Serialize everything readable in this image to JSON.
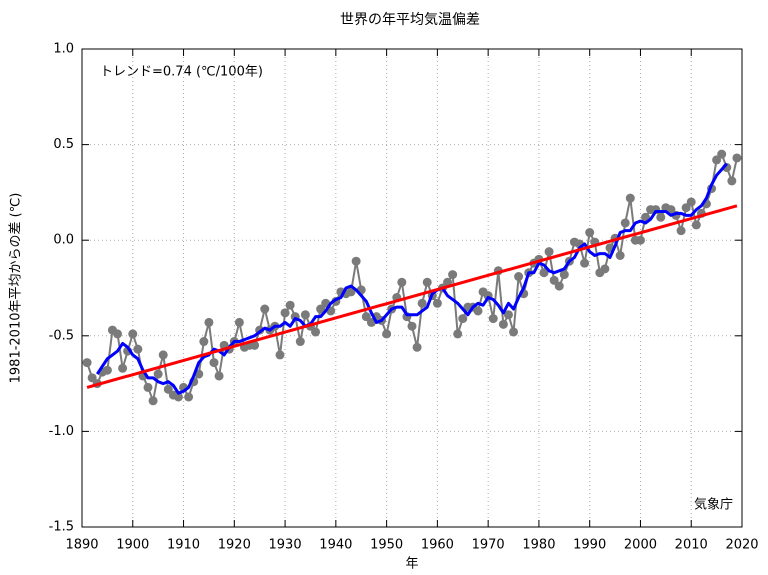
{
  "chart_data": {
    "type": "line",
    "title": "世界の年平均気温偏差",
    "annotation": "トレンド=0.74 (℃/100年)",
    "credit": "気象庁",
    "xlabel": "年",
    "ylabel": "1981-2010年平均からの差 (℃)",
    "xlim": [
      1890,
      2020
    ],
    "xticks": [
      1890,
      1900,
      1910,
      1920,
      1930,
      1940,
      1950,
      1960,
      1970,
      1980,
      1990,
      2000,
      2010,
      2020
    ],
    "ylim": [
      -1.5,
      1.0
    ],
    "yticks": [
      {
        "value": -1.5,
        "label": "-1.5"
      },
      {
        "value": -1.0,
        "label": "-1.0"
      },
      -0.5,
      {
        "value": 0.0,
        "label": "0.0"
      },
      0.5,
      {
        "value": 1.0,
        "label": "1.0"
      }
    ],
    "grid": true,
    "series": [
      {
        "color": "#7a7a7a",
        "markers": true,
        "width": 2,
        "x": [
          1891,
          1892,
          1893,
          1894,
          1895,
          1896,
          1897,
          1898,
          1899,
          1900,
          1901,
          1902,
          1903,
          1904,
          1905,
          1906,
          1907,
          1908,
          1909,
          1910,
          1911,
          1912,
          1913,
          1914,
          1915,
          1916,
          1917,
          1918,
          1919,
          1920,
          1921,
          1922,
          1923,
          1924,
          1925,
          1926,
          1927,
          1928,
          1929,
          1930,
          1931,
          1932,
          1933,
          1934,
          1935,
          1936,
          1937,
          1938,
          1939,
          1940,
          1941,
          1942,
          1943,
          1944,
          1945,
          1946,
          1947,
          1948,
          1949,
          1950,
          1951,
          1952,
          1953,
          1954,
          1955,
          1956,
          1957,
          1958,
          1959,
          1960,
          1961,
          1962,
          1963,
          1964,
          1965,
          1966,
          1967,
          1968,
          1969,
          1970,
          1971,
          1972,
          1973,
          1974,
          1975,
          1976,
          1977,
          1978,
          1979,
          1980,
          1981,
          1982,
          1983,
          1984,
          1985,
          1986,
          1987,
          1988,
          1989,
          1990,
          1991,
          1992,
          1993,
          1994,
          1995,
          1996,
          1997,
          1998,
          1999,
          2000,
          2001,
          2002,
          2003,
          2004,
          2005,
          2006,
          2007,
          2008,
          2009,
          2010,
          2011,
          2012,
          2013,
          2014,
          2015,
          2016,
          2017,
          2018,
          2019
        ],
        "values": [
          -0.64,
          -0.72,
          -0.75,
          -0.69,
          -0.68,
          -0.47,
          -0.49,
          -0.67,
          -0.58,
          -0.49,
          -0.57,
          -0.71,
          -0.77,
          -0.84,
          -0.7,
          -0.6,
          -0.78,
          -0.81,
          -0.82,
          -0.77,
          -0.82,
          -0.74,
          -0.7,
          -0.53,
          -0.43,
          -0.64,
          -0.71,
          -0.55,
          -0.57,
          -0.53,
          -0.43,
          -0.56,
          -0.55,
          -0.55,
          -0.47,
          -0.36,
          -0.47,
          -0.45,
          -0.6,
          -0.38,
          -0.34,
          -0.4,
          -0.53,
          -0.39,
          -0.45,
          -0.48,
          -0.36,
          -0.33,
          -0.37,
          -0.32,
          -0.27,
          -0.28,
          -0.27,
          -0.11,
          -0.26,
          -0.4,
          -0.43,
          -0.4,
          -0.42,
          -0.49,
          -0.36,
          -0.3,
          -0.22,
          -0.4,
          -0.45,
          -0.56,
          -0.33,
          -0.22,
          -0.29,
          -0.33,
          -0.25,
          -0.22,
          -0.18,
          -0.49,
          -0.41,
          -0.35,
          -0.35,
          -0.37,
          -0.27,
          -0.29,
          -0.41,
          -0.16,
          -0.44,
          -0.39,
          -0.48,
          -0.19,
          -0.28,
          -0.17,
          -0.12,
          -0.1,
          -0.17,
          -0.06,
          -0.21,
          -0.24,
          -0.18,
          -0.11,
          -0.01,
          -0.02,
          -0.12,
          0.04,
          -0.01,
          -0.17,
          -0.15,
          -0.04,
          0.01,
          -0.08,
          0.09,
          0.22,
          0.0,
          0.0,
          0.12,
          0.16,
          0.16,
          0.12,
          0.17,
          0.16,
          0.13,
          0.05,
          0.17,
          0.2,
          0.08,
          0.14,
          0.19,
          0.27,
          0.42,
          0.45,
          0.38,
          0.31,
          0.43
        ]
      },
      {
        "color": "#0000ff",
        "markers": false,
        "width": 3,
        "x": [
          1893,
          1894,
          1895,
          1896,
          1897,
          1898,
          1899,
          1900,
          1901,
          1902,
          1903,
          1904,
          1905,
          1906,
          1907,
          1908,
          1909,
          1910,
          1911,
          1912,
          1913,
          1914,
          1915,
          1916,
          1917,
          1918,
          1919,
          1920,
          1921,
          1922,
          1923,
          1924,
          1925,
          1926,
          1927,
          1928,
          1929,
          1930,
          1931,
          1932,
          1933,
          1934,
          1935,
          1936,
          1937,
          1938,
          1939,
          1940,
          1941,
          1942,
          1943,
          1944,
          1945,
          1946,
          1947,
          1948,
          1949,
          1950,
          1951,
          1952,
          1953,
          1954,
          1955,
          1956,
          1957,
          1958,
          1959,
          1960,
          1961,
          1962,
          1963,
          1964,
          1965,
          1966,
          1967,
          1968,
          1969,
          1970,
          1971,
          1972,
          1973,
          1974,
          1975,
          1976,
          1977,
          1978,
          1979,
          1980,
          1981,
          1982,
          1983,
          1984,
          1985,
          1986,
          1987,
          1988,
          1989,
          1990,
          1991,
          1992,
          1993,
          1994,
          1995,
          1996,
          1997,
          1998,
          1999,
          2000,
          2001,
          2002,
          2003,
          2004,
          2005,
          2006,
          2007,
          2008,
          2009,
          2010,
          2011,
          2012,
          2013,
          2014,
          2015,
          2016,
          2017
        ],
        "values": [
          -0.7,
          -0.66,
          -0.62,
          -0.6,
          -0.58,
          -0.54,
          -0.56,
          -0.6,
          -0.62,
          -0.68,
          -0.72,
          -0.72,
          -0.74,
          -0.75,
          -0.74,
          -0.76,
          -0.8,
          -0.79,
          -0.77,
          -0.71,
          -0.64,
          -0.61,
          -0.6,
          -0.57,
          -0.58,
          -0.6,
          -0.56,
          -0.53,
          -0.53,
          -0.52,
          -0.51,
          -0.5,
          -0.48,
          -0.46,
          -0.47,
          -0.45,
          -0.45,
          -0.43,
          -0.45,
          -0.41,
          -0.42,
          -0.45,
          -0.44,
          -0.4,
          -0.4,
          -0.37,
          -0.33,
          -0.31,
          -0.3,
          -0.25,
          -0.24,
          -0.26,
          -0.29,
          -0.32,
          -0.38,
          -0.43,
          -0.42,
          -0.39,
          -0.36,
          -0.35,
          -0.35,
          -0.39,
          -0.39,
          -0.39,
          -0.37,
          -0.35,
          -0.28,
          -0.26,
          -0.25,
          -0.29,
          -0.31,
          -0.33,
          -0.36,
          -0.39,
          -0.35,
          -0.33,
          -0.34,
          -0.3,
          -0.31,
          -0.34,
          -0.38,
          -0.33,
          -0.36,
          -0.3,
          -0.25,
          -0.17,
          -0.17,
          -0.12,
          -0.13,
          -0.16,
          -0.17,
          -0.16,
          -0.15,
          -0.11,
          -0.09,
          -0.04,
          -0.02,
          -0.06,
          -0.08,
          -0.07,
          -0.07,
          -0.09,
          -0.03,
          0.04,
          0.05,
          0.05,
          0.09,
          0.1,
          0.09,
          0.11,
          0.15,
          0.15,
          0.15,
          0.13,
          0.14,
          0.14,
          0.13,
          0.13,
          0.16,
          0.18,
          0.22,
          0.29,
          0.34,
          0.37,
          0.4
        ]
      },
      {
        "color": "#ff0000",
        "markers": false,
        "width": 3,
        "x": [
          1891,
          2019
        ],
        "values": [
          -0.77,
          0.18
        ]
      }
    ]
  }
}
